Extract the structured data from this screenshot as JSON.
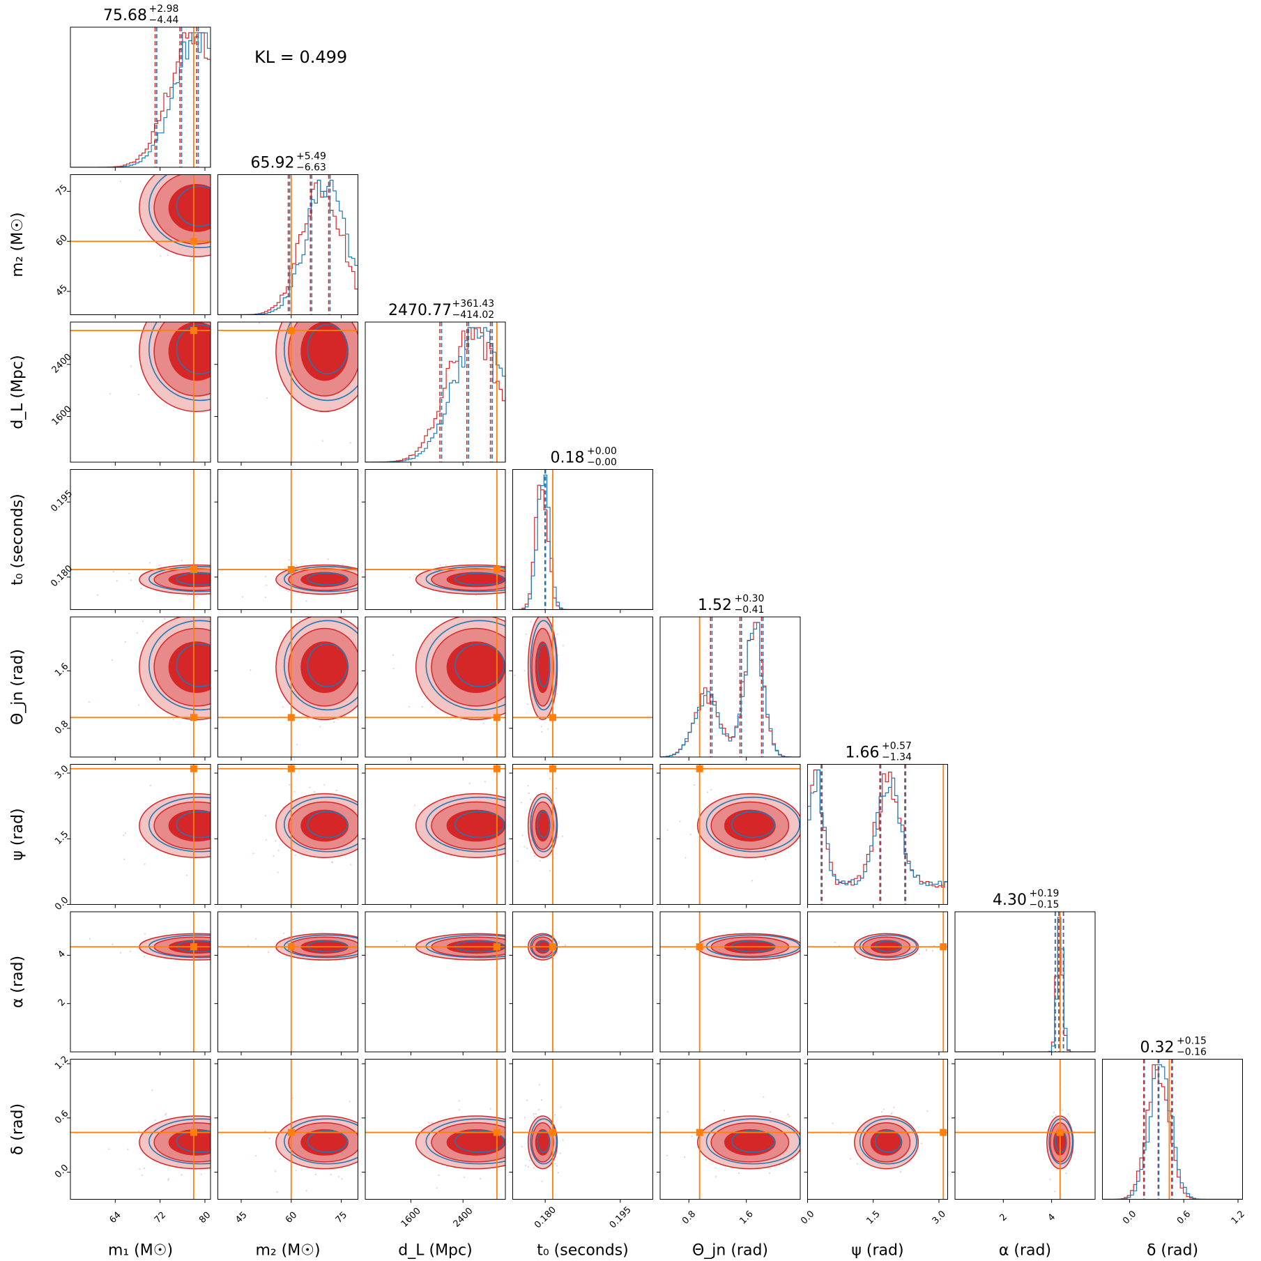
{
  "annotation": "KL = 0.499",
  "colors": {
    "red": "#d62728",
    "red_fill_light": "#f3c4c4",
    "red_fill_mid": "#e88a8a",
    "blue": "#1f77b4",
    "orange": "#ff7f0e",
    "background": "#ffffff"
  },
  "chart_data": {
    "type": "corner",
    "parameters": [
      {
        "key": "m1",
        "label": "m₁ (M☉)",
        "range": [
          56,
          81
        ],
        "ticks": [
          64,
          72,
          80
        ],
        "tick_labels": [
          "64",
          "72",
          "80"
        ],
        "truth": 78.0,
        "summary": {
          "median": "75.68",
          "plus": "+2.98",
          "minus": "−4.44"
        },
        "peak": 78.5,
        "sigma": 4.2
      },
      {
        "key": "m2",
        "label": "m₂ (M☉)",
        "range": [
          38,
          80
        ],
        "ticks": [
          45,
          60,
          75
        ],
        "tick_labels": [
          "45",
          "60",
          "75"
        ],
        "truth": 60.0,
        "summary": {
          "median": "65.92",
          "plus": "+5.49",
          "minus": "−6.63"
        },
        "peak": 70.0,
        "sigma": 6.0
      },
      {
        "key": "dL",
        "label": "d_L (Mpc)",
        "range": [
          900,
          3050
        ],
        "ticks": [
          1600,
          2400
        ],
        "tick_labels": [
          "1600",
          "2400"
        ],
        "truth": 2920,
        "summary": {
          "median": "2470.77",
          "plus": "+361.43",
          "minus": "−414.02"
        },
        "peak": 2600,
        "sigma": 380
      },
      {
        "key": "t0",
        "label": "t₀ (seconds)",
        "range": [
          0.1735,
          0.2015
        ],
        "ticks": [
          0.18,
          0.195
        ],
        "tick_labels": [
          "0.180",
          "0.195"
        ],
        "truth": 0.1815,
        "summary": {
          "median": "0.18",
          "plus": "+0.00",
          "minus": "−0.00"
        },
        "peak": 0.1795,
        "sigma": 0.0012
      },
      {
        "key": "thetajn",
        "label": "Θ_jn (rad)",
        "range": [
          0.4,
          2.35
        ],
        "ticks": [
          0.8,
          1.6
        ],
        "tick_labels": [
          "0.8",
          "1.6"
        ],
        "truth": 0.95,
        "summary": {
          "median": "1.52",
          "plus": "+0.30",
          "minus": "−0.41"
        },
        "peak": 1.65,
        "sigma": 0.3
      },
      {
        "key": "psi",
        "label": "ψ (rad)",
        "range": [
          0.0,
          3.2
        ],
        "ticks": [
          0.0,
          1.5,
          3.0
        ],
        "tick_labels": [
          "0.0",
          "1.5",
          "3.0"
        ],
        "truth": 3.1,
        "summary": {
          "median": "1.66",
          "plus": "+0.57",
          "minus": "−1.34"
        },
        "peak": 1.8,
        "sigma": 0.3
      },
      {
        "key": "alpha",
        "label": "α (rad)",
        "range": [
          0.0,
          5.8
        ],
        "ticks": [
          2,
          4
        ],
        "tick_labels": [
          "2",
          "4"
        ],
        "truth": 4.35,
        "summary": {
          "median": "4.30",
          "plus": "+0.19",
          "minus": "−0.15"
        },
        "peak": 4.35,
        "sigma": 0.12
      },
      {
        "key": "delta",
        "label": "δ (rad)",
        "range": [
          -0.3,
          1.25
        ],
        "ticks": [
          0.0,
          0.6,
          1.2
        ],
        "tick_labels": [
          "0.0",
          "0.6",
          "1.2"
        ],
        "truth": 0.44,
        "summary": {
          "median": "0.32",
          "plus": "+0.15",
          "minus": "−0.16"
        },
        "peak": 0.33,
        "sigma": 0.12
      }
    ],
    "series": [
      {
        "color": "#d62728"
      },
      {
        "color": "#1f77b4"
      }
    ],
    "truth_color": "#ff7f0e"
  }
}
